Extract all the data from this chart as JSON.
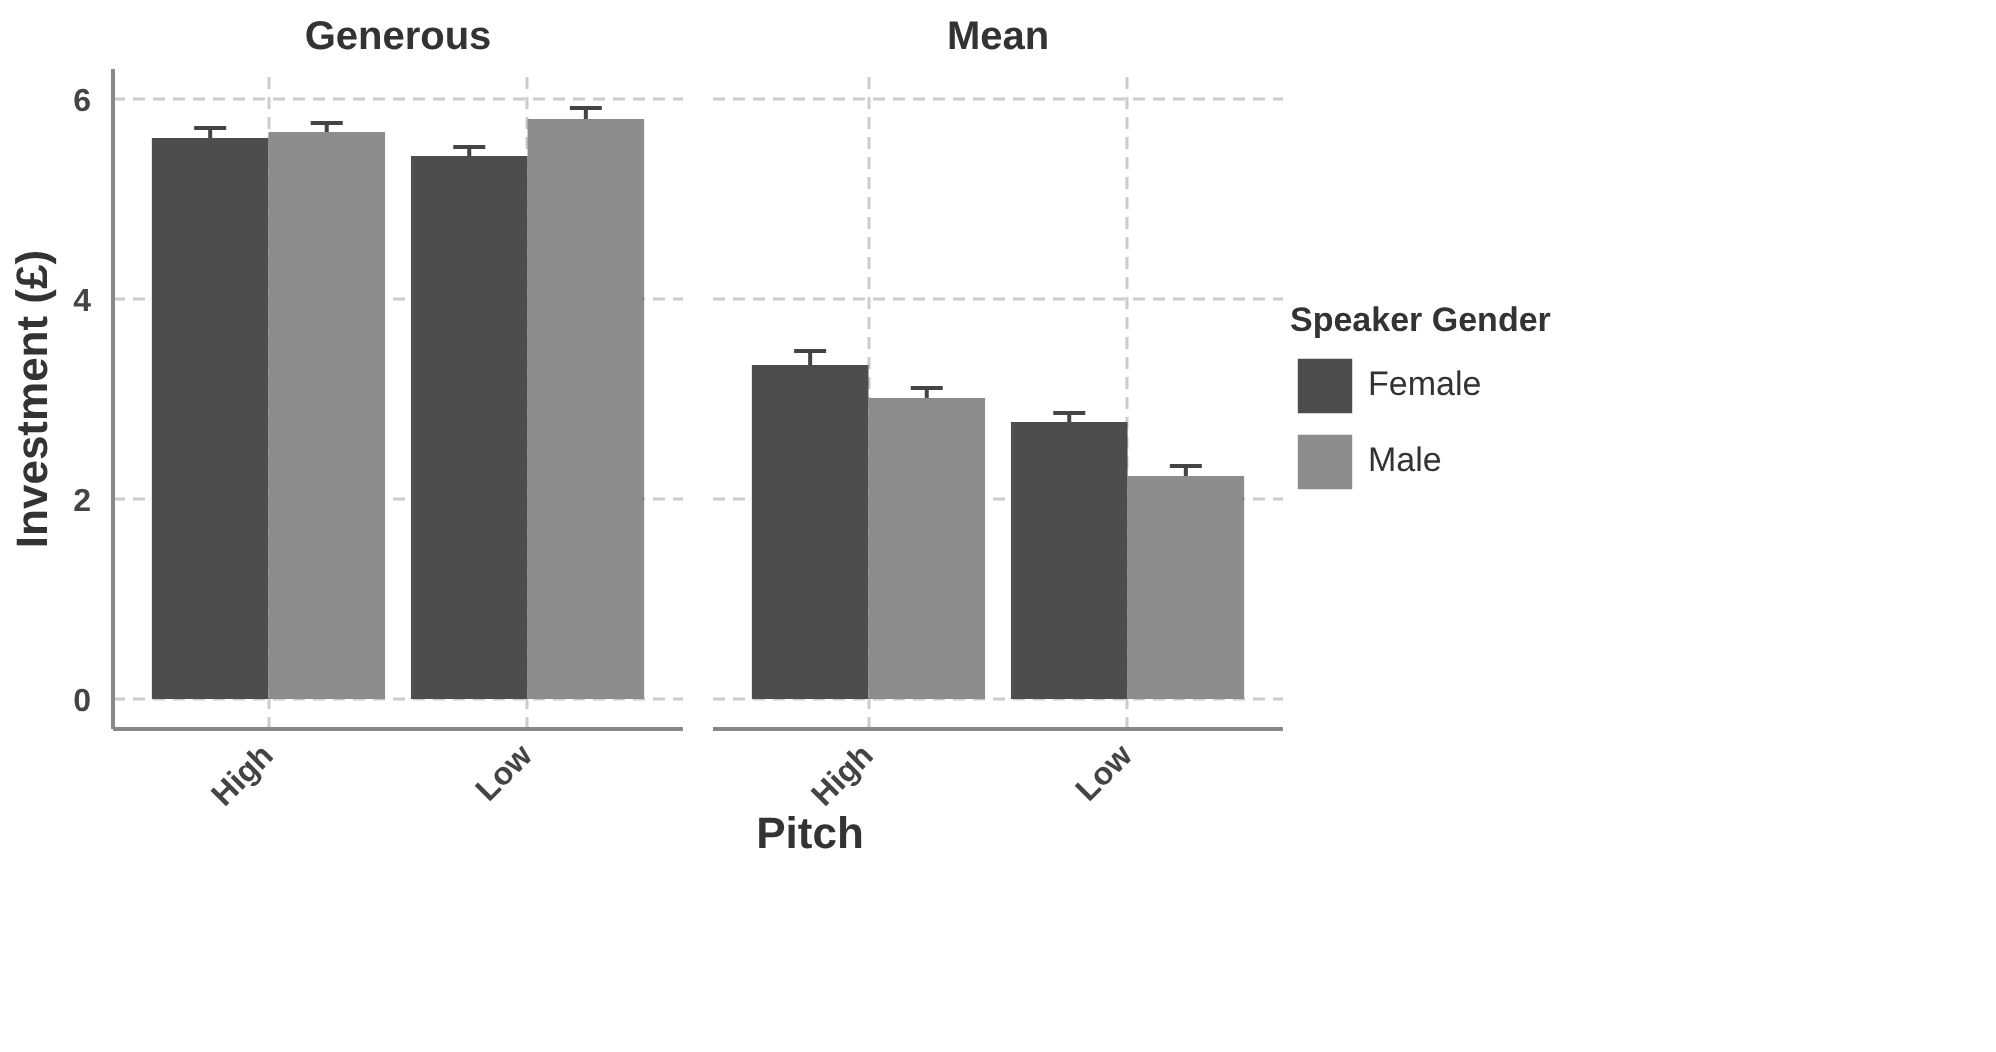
{
  "chart_data": [
    {
      "type": "bar",
      "title": "Generous",
      "xlabel": "Pitch",
      "ylabel": "Investment (£)",
      "categories": [
        "High",
        "Low"
      ],
      "series": [
        {
          "color": "#4d4d4d",
          "values": [
            5.61,
            5.43
          ],
          "errors": [
            0.1,
            0.09
          ]
        },
        {
          "color": "#8c8c8c",
          "values": [
            5.67,
            5.8
          ],
          "errors": [
            0.09,
            0.11
          ]
        }
      ],
      "ylim": [
        -0.3,
        6.3
      ],
      "yticks": [
        0,
        2,
        4,
        6
      ],
      "grid": true,
      "legend": false
    },
    {
      "type": "bar",
      "title": "Mean",
      "categories": [
        "High",
        "Low"
      ],
      "series": [
        {
          "name": "Female",
          "color": "#4d4d4d",
          "values": [
            3.34,
            2.77
          ],
          "errors": [
            0.14,
            0.09
          ]
        },
        {
          "name": "Male",
          "color": "#8c8c8c",
          "values": [
            3.01,
            2.23
          ],
          "errors": [
            0.1,
            0.1
          ]
        }
      ],
      "ylim": [
        -0.3,
        6.3
      ],
      "yticks": [
        0,
        2,
        4,
        6
      ],
      "grid": true,
      "legend": "right",
      "legend_title": "Speaker Gender",
      "tick_labels": "x"
    }
  ]
}
